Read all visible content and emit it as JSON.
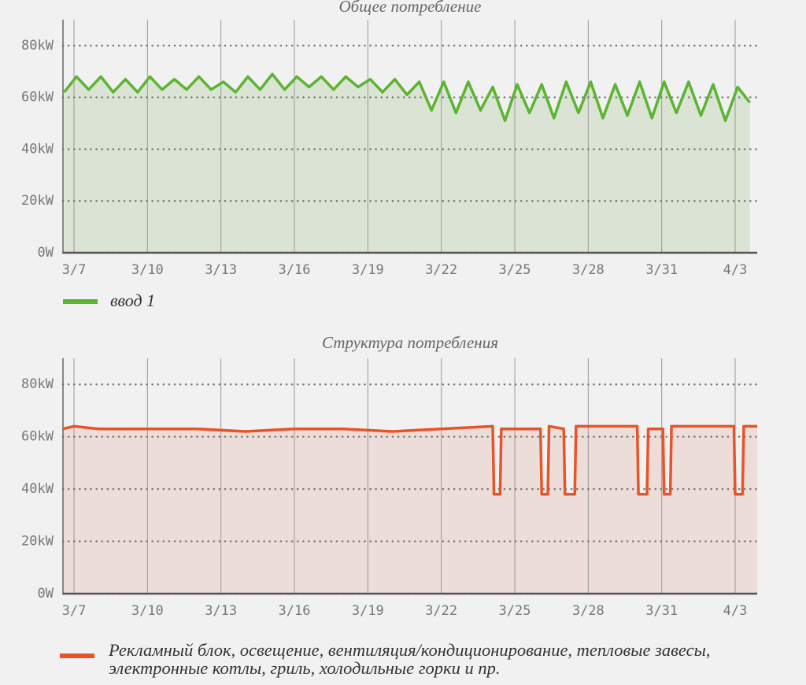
{
  "chart_data": [
    {
      "type": "area",
      "title": "Общее потребление",
      "x": [
        6.6,
        7.1,
        7.6,
        8.1,
        8.6,
        9.1,
        9.6,
        10.1,
        10.6,
        11.1,
        11.6,
        12.1,
        12.6,
        13.1,
        13.6,
        14.1,
        14.6,
        15.1,
        15.6,
        16.1,
        16.6,
        17.1,
        17.6,
        18.1,
        18.6,
        19.1,
        19.6,
        20.1,
        20.6,
        21.1,
        21.6,
        22.1,
        22.6,
        23.1,
        23.6,
        24.1,
        24.6,
        25.1,
        25.6,
        26.1,
        26.6,
        27.1,
        27.6,
        28.1,
        28.6,
        29.1,
        29.6,
        30.1,
        30.6,
        31.1,
        31.6,
        32.1,
        32.6,
        33.1,
        33.6,
        34.1,
        34.6
      ],
      "series": [
        {
          "name": "ввод 1",
          "color": "#5cb432",
          "fill": "#dbe4d4",
          "values": [
            62,
            68,
            63,
            68,
            62,
            67,
            62,
            68,
            63,
            67,
            63,
            68,
            63,
            66,
            62,
            68,
            63,
            69,
            63,
            68,
            64,
            68,
            63,
            68,
            64,
            67,
            62,
            67,
            61,
            66,
            55,
            66,
            54,
            66,
            55,
            64,
            51,
            65,
            54,
            65,
            52,
            66,
            54,
            66,
            52,
            65,
            53,
            66,
            52,
            66,
            54,
            66,
            53,
            65,
            51,
            64,
            58
          ]
        }
      ],
      "xlim": [
        6.55,
        34.9
      ],
      "xticks": [
        {
          "value": 7,
          "label": "3/7"
        },
        {
          "value": 10,
          "label": "3/10"
        },
        {
          "value": 13,
          "label": "3/13"
        },
        {
          "value": 16,
          "label": "3/16"
        },
        {
          "value": 19,
          "label": "3/19"
        },
        {
          "value": 22,
          "label": "3/22"
        },
        {
          "value": 25,
          "label": "3/25"
        },
        {
          "value": 28,
          "label": "3/28"
        },
        {
          "value": 31,
          "label": "3/31"
        },
        {
          "value": 34,
          "label": "4/3"
        }
      ],
      "ylim": [
        0,
        90
      ],
      "yticks": [
        {
          "value": 0,
          "label": "0W"
        },
        {
          "value": 20,
          "label": "20kW"
        },
        {
          "value": 40,
          "label": "40kW"
        },
        {
          "value": 60,
          "label": "60kW"
        },
        {
          "value": 80,
          "label": "80kW"
        }
      ],
      "grid": true
    },
    {
      "type": "area",
      "title": "Структура потребления",
      "x": [
        6.55,
        7,
        8,
        10,
        12,
        14,
        16,
        18,
        20,
        22,
        24.1,
        24.15,
        24.4,
        24.45,
        26.05,
        26.1,
        26.35,
        26.4,
        27.0,
        27.05,
        27.45,
        27.5,
        30.0,
        30.05,
        30.4,
        30.45,
        31.05,
        31.1,
        31.35,
        31.4,
        33.95,
        34.0,
        34.3,
        34.35,
        34.9
      ],
      "series": [
        {
          "name": "Рекламный блок, освещение, вентиляция/кондиционирование, тепловые завесы, электронные котлы, гриль, холодильные горки и пр.",
          "color": "#e8542a",
          "fill": "#ecddd8",
          "values": [
            63,
            64,
            63,
            63,
            63,
            62,
            63,
            63,
            62,
            63,
            64,
            38,
            38,
            63,
            63,
            38,
            38,
            64,
            63,
            38,
            38,
            64,
            64,
            38,
            38,
            63,
            63,
            38,
            38,
            64,
            64,
            38,
            38,
            64,
            64
          ]
        }
      ],
      "xlim": [
        6.55,
        34.9
      ],
      "xticks": [
        {
          "value": 7,
          "label": "3/7"
        },
        {
          "value": 10,
          "label": "3/10"
        },
        {
          "value": 13,
          "label": "3/13"
        },
        {
          "value": 16,
          "label": "3/16"
        },
        {
          "value": 19,
          "label": "3/19"
        },
        {
          "value": 22,
          "label": "3/22"
        },
        {
          "value": 25,
          "label": "3/25"
        },
        {
          "value": 28,
          "label": "3/28"
        },
        {
          "value": 31,
          "label": "3/31"
        },
        {
          "value": 34,
          "label": "4/3"
        }
      ],
      "ylim": [
        0,
        90
      ],
      "yticks": [
        {
          "value": 0,
          "label": "0W"
        },
        {
          "value": 20,
          "label": "20kW"
        },
        {
          "value": 40,
          "label": "40kW"
        },
        {
          "value": 60,
          "label": "60kW"
        },
        {
          "value": 80,
          "label": "80kW"
        }
      ],
      "grid": true
    }
  ]
}
